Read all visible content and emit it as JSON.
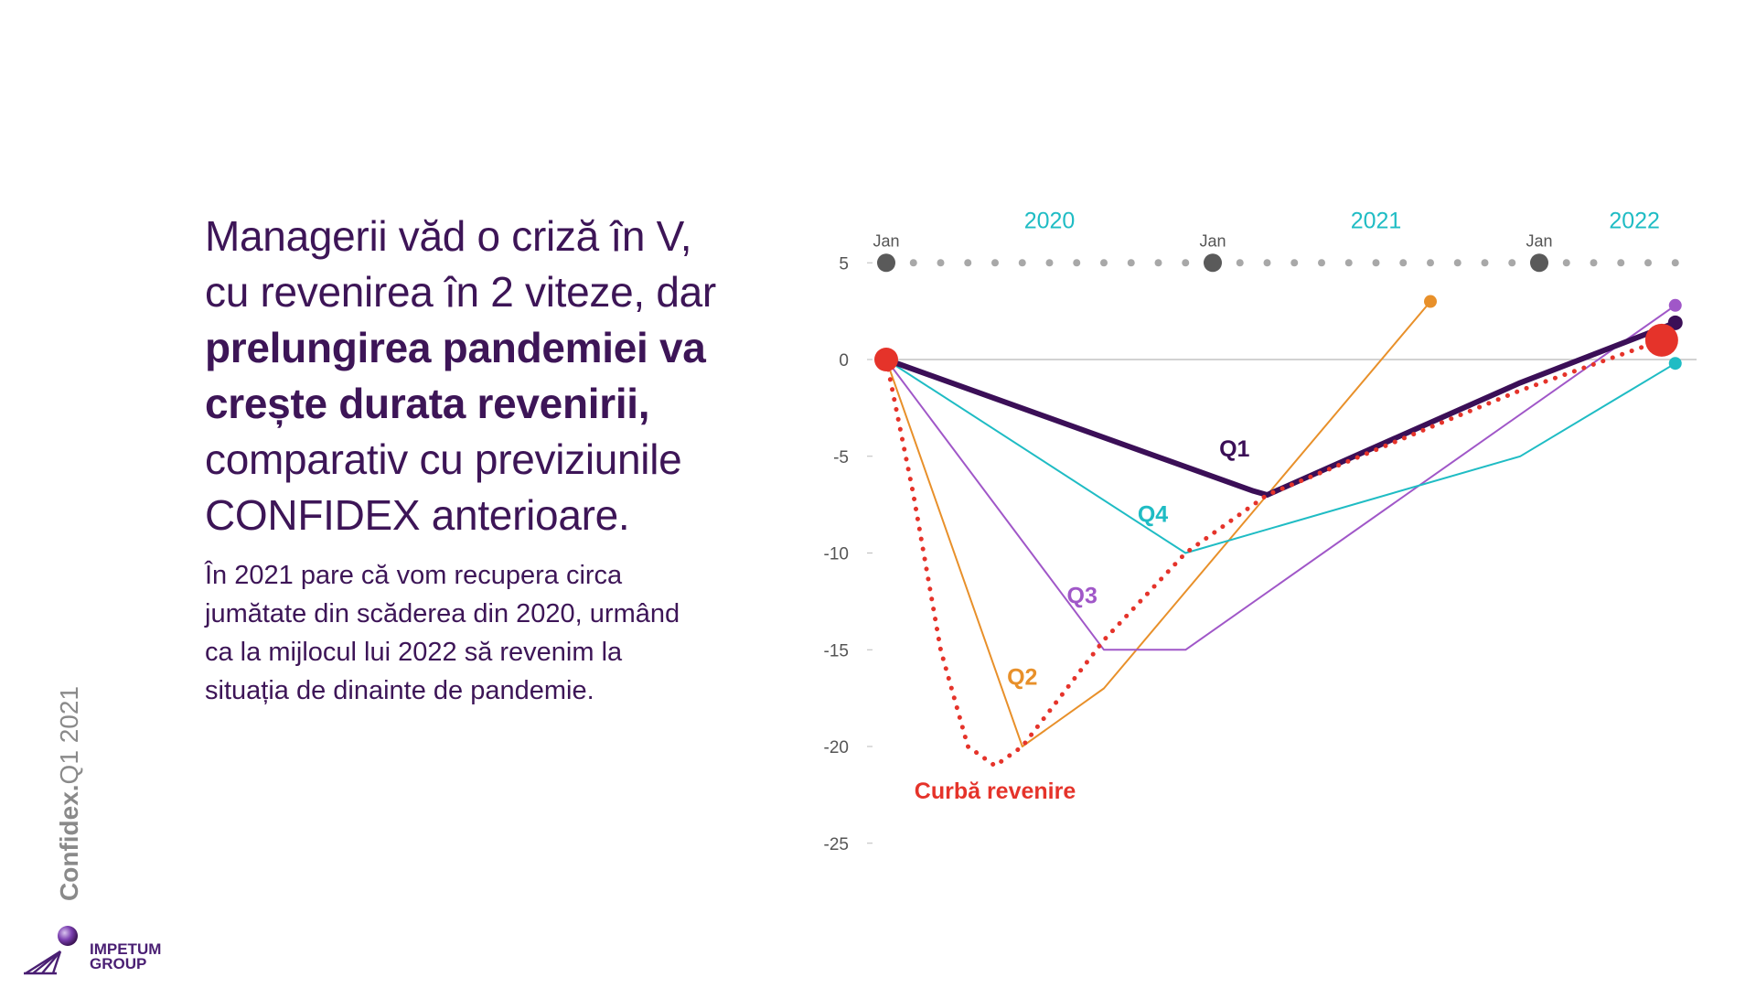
{
  "headline": {
    "line1": "Managerii văd o criză în V,",
    "line2": "cu revenirea în 2 viteze, dar",
    "bold_line1": "prelungirea pandemiei va",
    "bold_line2": "crește durata revenirii,",
    "line5": "comparativ cu previziunile",
    "line6": "CONFIDEX anterioare."
  },
  "subtext": {
    "line1": "În 2021 pare că vom recupera circa",
    "line2": "jumătate din scăderea din 2020, urmând",
    "line3": "ca la mijlocul lui 2022 să revenim la",
    "line4": "situația de dinainte de pandemie."
  },
  "sidebar": {
    "brand_bold": "Confidex.",
    "brand_rest": "Q1 2021"
  },
  "logo": {
    "line1": "IMPETUM",
    "line2": "GROUP"
  },
  "colors": {
    "text_purple": "#3d1557",
    "q1": "#3b0f57",
    "q2": "#e8902a",
    "q3": "#a057c8",
    "q4": "#1fbcc4",
    "curve": "#e5332a",
    "timeline_major": "#5a5a5a",
    "timeline_minor": "#a8a8a8"
  },
  "chart_data": {
    "type": "line",
    "title": "",
    "xlabel": "",
    "ylabel": "",
    "x_unit": "months since Jan 2020",
    "xlim": [
      0,
      29.5
    ],
    "ylim": [
      -25,
      5
    ],
    "yticks": [
      5,
      0,
      -5,
      -10,
      -15,
      -20,
      -25
    ],
    "ytick_labels": [
      "5",
      "0",
      "-5",
      "-10",
      "-15",
      "-20",
      "-25"
    ],
    "timeline": {
      "year_labels": [
        {
          "label": "2020",
          "month": 6
        },
        {
          "label": "2021",
          "month": 18
        },
        {
          "label": "2022",
          "month": 27.5
        }
      ],
      "major_ticks": [
        {
          "label": "Jan",
          "month": 0
        },
        {
          "label": "Jan",
          "month": 12
        },
        {
          "label": "Jan",
          "month": 24
        }
      ],
      "minor_tick_months": [
        1,
        2,
        3,
        4,
        5,
        6,
        7,
        8,
        9,
        10,
        11,
        13,
        14,
        15,
        16,
        17,
        18,
        19,
        20,
        21,
        22,
        23,
        25,
        26,
        27,
        28,
        29
      ]
    },
    "series": [
      {
        "name": "Q1",
        "color_key": "q1",
        "style": "thick",
        "points": [
          [
            0,
            0
          ],
          [
            13.5,
            -6.8
          ],
          [
            14,
            -7
          ],
          [
            23.3,
            -1.2
          ],
          [
            29,
            1.9
          ]
        ],
        "label_pos": [
          12.8,
          -5
        ]
      },
      {
        "name": "Q2",
        "color_key": "q2",
        "style": "thin",
        "points": [
          [
            0,
            0
          ],
          [
            5,
            -20
          ],
          [
            8,
            -17
          ],
          [
            20,
            3
          ]
        ],
        "end_marker": true,
        "label_pos": [
          5,
          -16.8
        ]
      },
      {
        "name": "Q3",
        "color_key": "q3",
        "style": "thin",
        "points": [
          [
            0,
            0
          ],
          [
            8,
            -15
          ],
          [
            11,
            -15
          ],
          [
            29,
            2.8
          ]
        ],
        "end_marker": true,
        "label_pos": [
          7.2,
          -12.6
        ]
      },
      {
        "name": "Q4",
        "color_key": "q4",
        "style": "thin",
        "points": [
          [
            0,
            0
          ],
          [
            11,
            -10
          ],
          [
            23.3,
            -5
          ],
          [
            29,
            -0.2
          ]
        ],
        "end_marker": true,
        "label_pos": [
          9.8,
          -8.4
        ]
      },
      {
        "name": "Curbă revenire",
        "color_key": "curve",
        "style": "dotted",
        "points": [
          [
            0,
            0
          ],
          [
            1,
            -7
          ],
          [
            2,
            -15
          ],
          [
            3,
            -20
          ],
          [
            4,
            -21
          ],
          [
            5,
            -20
          ],
          [
            8,
            -14.5
          ],
          [
            11,
            -10
          ],
          [
            14,
            -7
          ],
          [
            20,
            -3.5
          ],
          [
            23.3,
            -1.6
          ],
          [
            28.5,
            1
          ]
        ],
        "end_marker": true,
        "label_pos": [
          4,
          -22.7
        ]
      }
    ]
  }
}
